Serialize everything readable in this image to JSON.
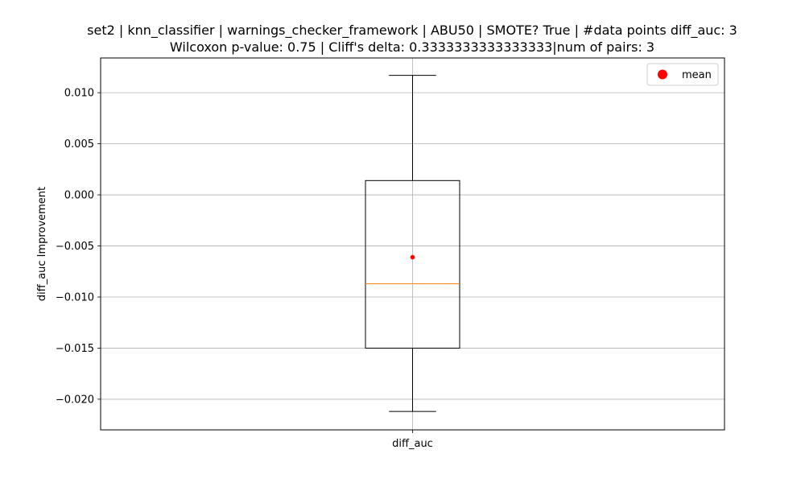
{
  "chart_data": {
    "type": "box",
    "title_line1": "set2 | knn_classifier | warnings_checker_framework | ABU50 | SMOTE? True | #data points diff_auc: 3",
    "title_line2": "Wilcoxon p-value: 0.75 | Cliff's delta: 0.3333333333333333|num of pairs: 3",
    "xlabel": "",
    "ylabel": "diff_auc Improvement",
    "categories": [
      "diff_auc"
    ],
    "ylim": [
      -0.023,
      0.0134
    ],
    "yticks": [
      0.01,
      0.005,
      0.0,
      -0.005,
      -0.01,
      -0.015,
      -0.02
    ],
    "ytick_labels": [
      "0.010",
      "0.005",
      "0.000",
      "−0.005",
      "−0.010",
      "−0.015",
      "−0.020"
    ],
    "grid": true,
    "legend": {
      "placement": "top-right",
      "entries": [
        {
          "label": "mean",
          "color": "#ff0000"
        }
      ]
    },
    "boxes": [
      {
        "category": "diff_auc",
        "whisker_low": -0.0212,
        "q1": -0.015,
        "median": -0.0087,
        "q3": 0.0014,
        "whisker_high": 0.0117,
        "mean": -0.0061
      }
    ],
    "colors": {
      "box": "#000000",
      "median": "#ff7f0e",
      "mean": "#ff0000",
      "grid": "#b0b0b0"
    }
  }
}
